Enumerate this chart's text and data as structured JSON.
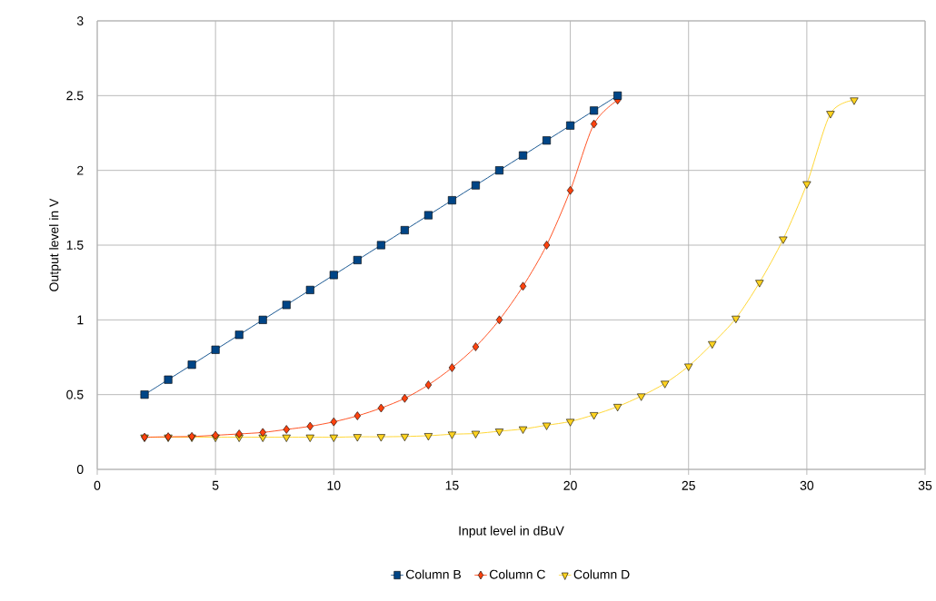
{
  "chart_data": {
    "type": "line",
    "xlabel": "Input level in dBuV",
    "ylabel": "Output level in V",
    "xlim": [
      0,
      35
    ],
    "xticks": [
      0,
      5,
      10,
      15,
      20,
      25,
      30,
      35
    ],
    "ylim": [
      0,
      3
    ],
    "yticks": [
      0,
      0.5,
      1,
      1.5,
      2,
      2.5,
      3
    ],
    "grid": true,
    "legend": "bottom",
    "series": [
      {
        "name": "Column B",
        "color": "#004586",
        "marker": "square",
        "x": [
          2,
          3,
          4,
          5,
          6,
          7,
          8,
          9,
          10,
          11,
          12,
          13,
          14,
          15,
          16,
          17,
          18,
          19,
          20,
          21,
          22
        ],
        "values": [
          0.5,
          0.6,
          0.7,
          0.8,
          0.9,
          1.0,
          1.1,
          1.2,
          1.3,
          1.4,
          1.5,
          1.6,
          1.7,
          1.8,
          1.9,
          2.0,
          2.1,
          2.2,
          2.3,
          2.4,
          2.5
        ]
      },
      {
        "name": "Column C",
        "color": "#ff420e",
        "marker": "diamond",
        "x": [
          2,
          3,
          4,
          5,
          6,
          7,
          8,
          9,
          10,
          11,
          12,
          13,
          14,
          15,
          16,
          17,
          18,
          19,
          20,
          21,
          22
        ],
        "values": [
          0.215,
          0.218,
          0.22,
          0.228,
          0.237,
          0.247,
          0.267,
          0.288,
          0.318,
          0.358,
          0.41,
          0.475,
          0.565,
          0.68,
          0.82,
          1.0,
          1.225,
          1.5,
          1.866,
          2.31,
          2.47
        ]
      },
      {
        "name": "Column D",
        "color": "#ffd320",
        "marker": "triangle",
        "x": [
          2,
          3,
          4,
          5,
          6,
          7,
          8,
          9,
          10,
          11,
          12,
          13,
          14,
          15,
          16,
          17,
          18,
          19,
          20,
          21,
          22,
          23,
          24,
          25,
          26,
          27,
          28,
          29,
          30,
          31,
          32
        ],
        "values": [
          0.215,
          0.215,
          0.215,
          0.215,
          0.215,
          0.215,
          0.215,
          0.215,
          0.215,
          0.218,
          0.218,
          0.22,
          0.225,
          0.235,
          0.24,
          0.255,
          0.27,
          0.295,
          0.32,
          0.365,
          0.42,
          0.49,
          0.575,
          0.69,
          0.84,
          1.01,
          1.25,
          1.54,
          1.91,
          2.38,
          2.47
        ]
      }
    ]
  }
}
